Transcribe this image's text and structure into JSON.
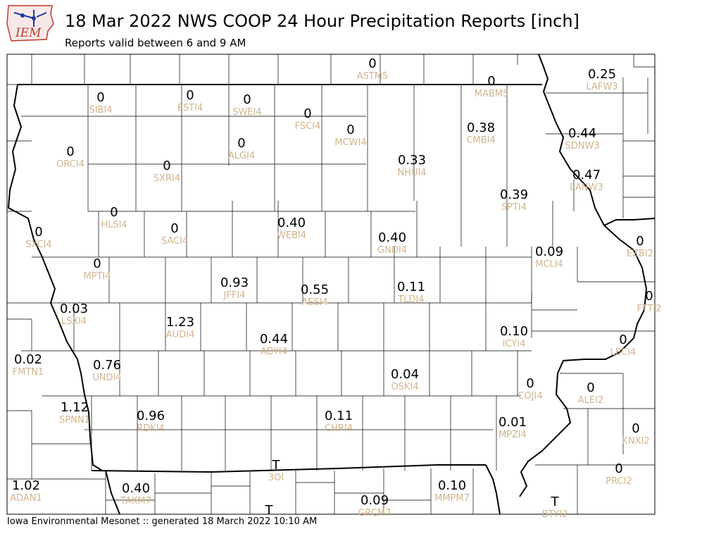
{
  "header": {
    "logo_text": "IEM",
    "title": "18 Mar 2022 NWS COOP 24 Hour Precipitation Reports [inch]",
    "subtitle": "Reports valid between 6 and 9 AM"
  },
  "footer": {
    "text": "Iowa Environmental Mesonet :: generated 18 March 2022 10:10 AM"
  },
  "colors": {
    "value_text": "#000000",
    "station_text": "#d2b48c",
    "boundary": "#000000",
    "logo_blue": "#1a3aa8",
    "logo_red": "#c0392b"
  },
  "stations": [
    {
      "id": "ASTM5",
      "value": "0"
    },
    {
      "id": "MABM5",
      "value": "0"
    },
    {
      "id": "LAFW3",
      "value": "0.25"
    },
    {
      "id": "SIBI4",
      "value": "0"
    },
    {
      "id": "ESTI4",
      "value": "0"
    },
    {
      "id": "SWEI4",
      "value": "0"
    },
    {
      "id": "FSCI4",
      "value": "0"
    },
    {
      "id": "MCWI4",
      "value": "0"
    },
    {
      "id": "CMBI4",
      "value": "0.38"
    },
    {
      "id": "SDNW3",
      "value": "0.44"
    },
    {
      "id": "ORCI4",
      "value": "0"
    },
    {
      "id": "ALGI4",
      "value": "0"
    },
    {
      "id": "SXRI4",
      "value": "0"
    },
    {
      "id": "NHUI4",
      "value": "0.33"
    },
    {
      "id": "LANW3",
      "value": "0.47"
    },
    {
      "id": "SPTI4",
      "value": "0.39"
    },
    {
      "id": "HLSI4",
      "value": "0"
    },
    {
      "id": "SXCI4",
      "value": "0"
    },
    {
      "id": "SACI4",
      "value": "0"
    },
    {
      "id": "WEBI4",
      "value": "0.40"
    },
    {
      "id": "GNDI4",
      "value": "0.40"
    },
    {
      "id": "EZBI2",
      "value": "0"
    },
    {
      "id": "MCLI4",
      "value": "0.09"
    },
    {
      "id": "MPTI4",
      "value": "0"
    },
    {
      "id": "JFFI4",
      "value": "0.93"
    },
    {
      "id": "AESI4",
      "value": "0.55"
    },
    {
      "id": "TLDI4",
      "value": "0.11"
    },
    {
      "id": "FTTI2",
      "value": "0"
    },
    {
      "id": "LSXI4",
      "value": "0.03"
    },
    {
      "id": "AUDI4",
      "value": "1.23"
    },
    {
      "id": "ADYI4",
      "value": "0.44"
    },
    {
      "id": "ICYI4",
      "value": "0.10"
    },
    {
      "id": "LECI4",
      "value": "0"
    },
    {
      "id": "FMTN1",
      "value": "0.02"
    },
    {
      "id": "UNDI4",
      "value": "0.76"
    },
    {
      "id": "OSKI4",
      "value": "0.04"
    },
    {
      "id": "COJI4",
      "value": "0"
    },
    {
      "id": "ALEI2",
      "value": "0"
    },
    {
      "id": "SPNN1",
      "value": "1.12"
    },
    {
      "id": "RDKI4",
      "value": "0.96"
    },
    {
      "id": "CHRI4",
      "value": "0.11"
    },
    {
      "id": "MPZI4",
      "value": "0.01"
    },
    {
      "id": "KNXI2",
      "value": "0"
    },
    {
      "id": "3OI",
      "value": "T"
    },
    {
      "id": "PRCI2",
      "value": "0"
    },
    {
      "id": "ADAN1",
      "value": "1.02"
    },
    {
      "id": "TAKM7",
      "value": "0.40"
    },
    {
      "id": "MMPM7",
      "value": "0.10"
    },
    {
      "id": "GRCM7",
      "value": "0.09"
    },
    {
      "id": "BTYI2",
      "value": "T"
    },
    {
      "id": "",
      "value": "T"
    }
  ]
}
